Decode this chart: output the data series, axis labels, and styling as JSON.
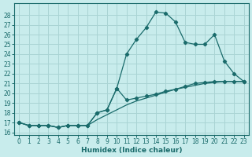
{
  "xlabel": "Humidex (Indice chaleur)",
  "bg_color": "#c8ecec",
  "grid_color": "#aad4d4",
  "line_color": "#1a6b6b",
  "xlim": [
    -0.5,
    23.5
  ],
  "ylim": [
    15.7,
    29.2
  ],
  "yticks": [
    16,
    17,
    18,
    19,
    20,
    21,
    22,
    23,
    24,
    25,
    26,
    27,
    28
  ],
  "xticks": [
    0,
    1,
    2,
    3,
    4,
    5,
    6,
    7,
    8,
    9,
    10,
    11,
    12,
    13,
    14,
    15,
    16,
    17,
    18,
    19,
    20,
    21,
    22,
    23
  ],
  "line1_x": [
    0,
    1,
    2,
    3,
    4,
    5,
    6,
    7,
    8,
    9,
    10,
    11,
    12,
    13,
    14,
    15,
    16,
    17,
    18,
    19,
    20,
    21,
    22,
    23
  ],
  "line1_y": [
    17.0,
    16.7,
    16.7,
    16.7,
    16.5,
    16.7,
    16.7,
    16.7,
    18.0,
    18.3,
    20.5,
    24.0,
    25.5,
    26.7,
    28.3,
    28.2,
    27.3,
    25.2,
    25.0,
    25.0,
    26.0,
    23.3,
    22.0,
    21.2
  ],
  "line2_x": [
    0,
    1,
    2,
    3,
    4,
    5,
    6,
    7,
    8,
    9,
    10,
    11,
    12,
    13,
    14,
    15,
    16,
    17,
    18,
    19,
    20,
    21,
    22,
    23
  ],
  "line2_y": [
    17.0,
    16.7,
    16.7,
    16.7,
    16.5,
    16.7,
    16.7,
    16.7,
    17.3,
    17.8,
    18.3,
    18.8,
    19.2,
    19.5,
    19.8,
    20.1,
    20.4,
    20.6,
    20.8,
    21.0,
    21.1,
    21.2,
    21.2,
    21.2
  ],
  "line3_x": [
    0,
    1,
    2,
    3,
    4,
    5,
    6,
    7,
    8,
    9,
    10,
    11,
    12,
    13,
    14,
    15,
    16,
    17,
    18,
    19,
    20,
    21,
    22,
    23
  ],
  "line3_y": [
    17.0,
    16.7,
    16.7,
    16.7,
    16.5,
    16.7,
    16.7,
    16.7,
    18.0,
    18.3,
    20.5,
    19.3,
    19.5,
    19.7,
    19.9,
    20.2,
    20.4,
    20.7,
    21.0,
    21.1,
    21.2,
    21.2,
    21.2,
    21.2
  ]
}
